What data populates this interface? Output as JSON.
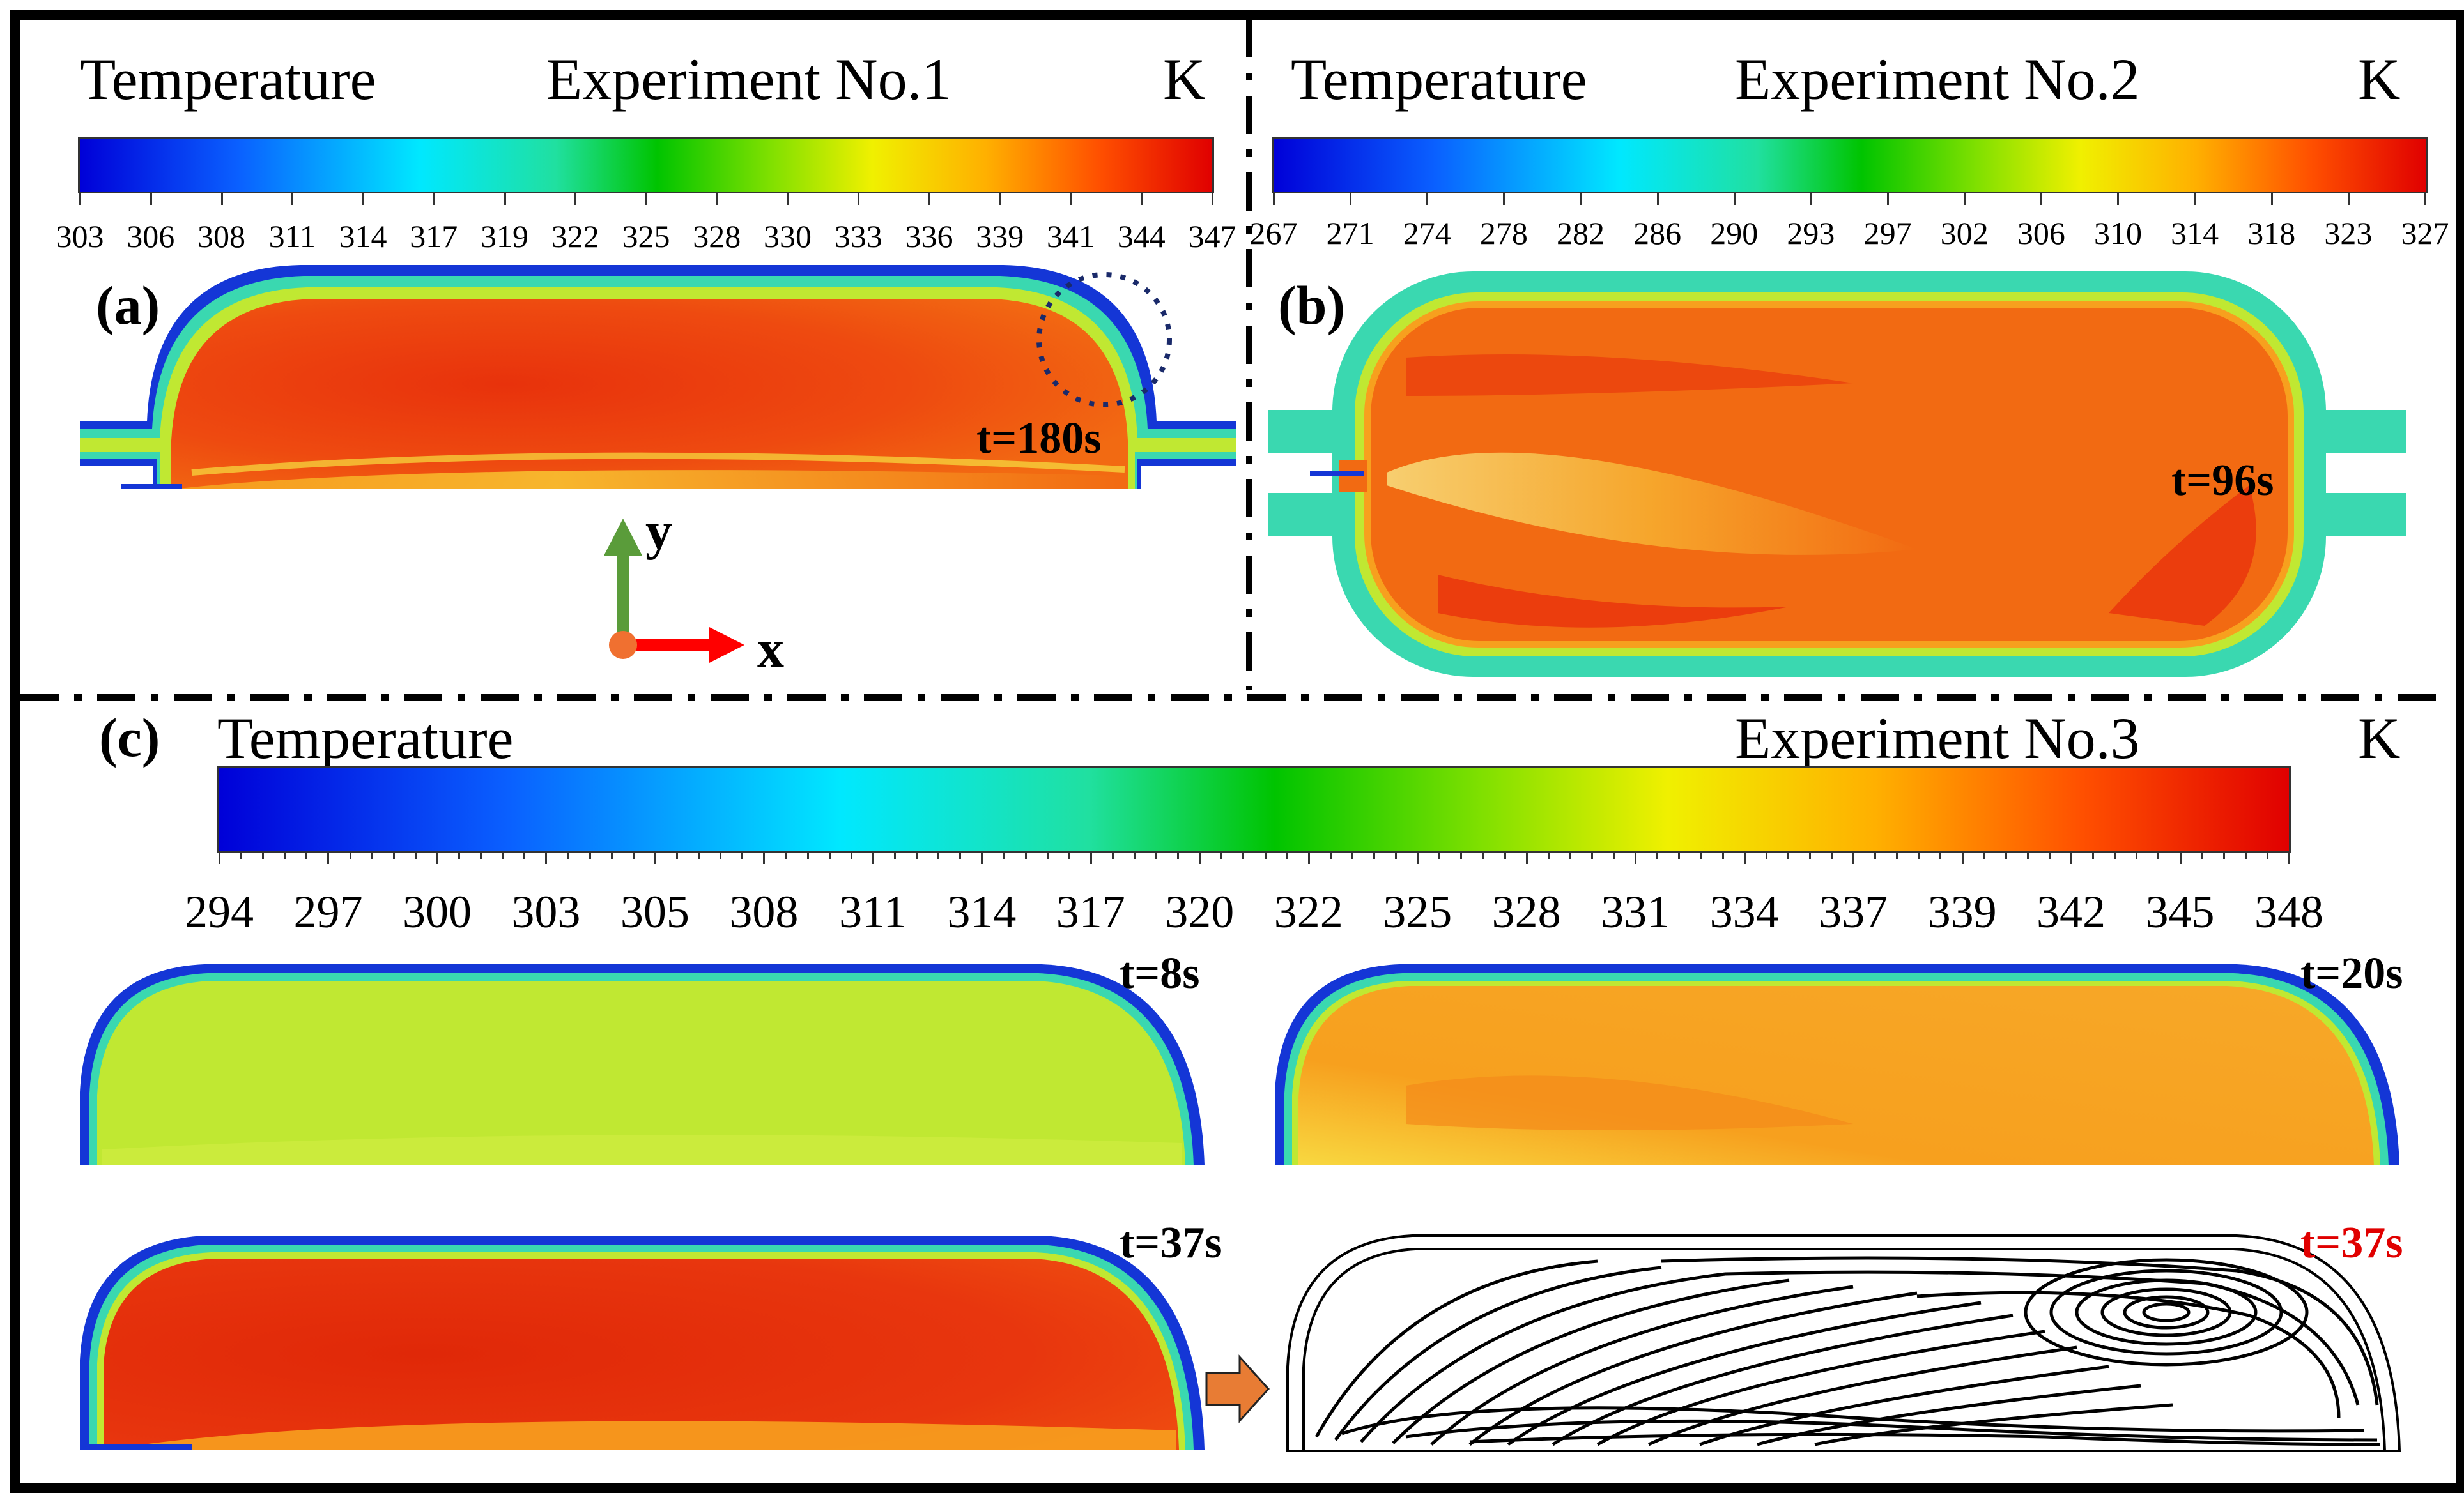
{
  "colors": {
    "hot": "#e8320c",
    "warm": "#f26a12",
    "orange": "#f7a01e",
    "yellowgreen": "#c0e832",
    "teal": "#3ad8b0",
    "blue": "#1436d6",
    "arrow_red": "#ff0000",
    "arrow_green": "#5a9c3a",
    "origin": "#f07030",
    "block_arrow": "#e87c34",
    "red_text": "#e00000"
  },
  "panel_a": {
    "label": "(a)",
    "legend_title": "Temperature",
    "experiment": "Experiment  No.1",
    "unit": "K",
    "ticks": [
      "303",
      "306",
      "308",
      "311",
      "314",
      "317",
      "319",
      "322",
      "325",
      "328",
      "330",
      "333",
      "336",
      "339",
      "341",
      "344",
      "347"
    ],
    "time": "t=180s",
    "axis_y": "y",
    "axis_x": "x"
  },
  "panel_b": {
    "label": "(b)",
    "legend_title": "Temperature",
    "experiment": "Experiment  No.2",
    "unit": "K",
    "ticks": [
      "267",
      "271",
      "274",
      "278",
      "282",
      "286",
      "290",
      "293",
      "297",
      "302",
      "306",
      "310",
      "314",
      "318",
      "323",
      "327"
    ],
    "time": "t=96s"
  },
  "panel_c": {
    "label": "(c)",
    "legend_title": "Temperature",
    "experiment": "Experiment  No.3",
    "unit": "K",
    "ticks": [
      "294",
      "297",
      "300",
      "303",
      "305",
      "308",
      "311",
      "314",
      "317",
      "320",
      "322",
      "325",
      "328",
      "331",
      "334",
      "337",
      "339",
      "342",
      "345",
      "348"
    ],
    "times": [
      "t=8s",
      "t=20s",
      "t=37s",
      "t=37s"
    ]
  }
}
